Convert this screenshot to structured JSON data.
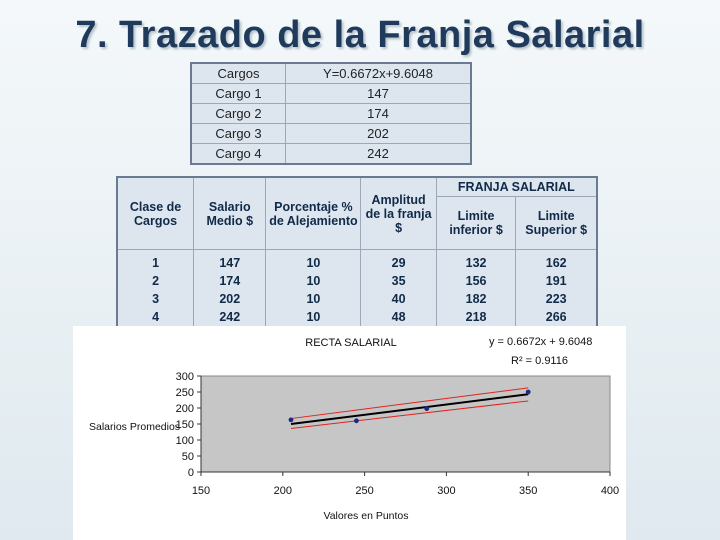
{
  "slide": {
    "title": "7. Trazado de la Franja Salarial"
  },
  "top_table": {
    "header": [
      "Cargos",
      "Y=0.6672x+9.6048"
    ],
    "rows": [
      [
        "Cargo 1",
        "147"
      ],
      [
        "Cargo 2",
        "174"
      ],
      [
        "Cargo 3",
        "202"
      ],
      [
        "Cargo 4",
        "242"
      ]
    ]
  },
  "main_table": {
    "headers": {
      "clase": "Clase de Cargos",
      "salario": "Salario Medio $",
      "porcentaje": "Porcentaje % de Alejamiento",
      "amplitud": "Amplitud de la franja $",
      "franja": "FRANJA SALARIAL",
      "limite_inferior": "Limite inferior $",
      "limite_superior": "Limite Superior $"
    },
    "rows": [
      [
        "1",
        "147",
        "10",
        "29",
        "132",
        "162"
      ],
      [
        "2",
        "174",
        "10",
        "35",
        "156",
        "191"
      ],
      [
        "3",
        "202",
        "10",
        "40",
        "182",
        "223"
      ],
      [
        "4",
        "242",
        "10",
        "48",
        "218",
        "266"
      ]
    ]
  },
  "chart_data": {
    "type": "scatter",
    "title": "RECTA SALARIAL",
    "xlabel": "Valores en Puntos",
    "ylabel": "Salarios Promedios",
    "xlim": [
      150,
      400
    ],
    "ylim": [
      0,
      300
    ],
    "x_ticks": [
      "150",
      "200",
      "250",
      "300",
      "350",
      "400"
    ],
    "y_ticks": [
      "0",
      "50",
      "100",
      "150",
      "200",
      "250",
      "300"
    ],
    "equation": "y = 0.6672x + 9.6048",
    "r_squared": "R² = 0.9116",
    "points": [
      {
        "x": 205,
        "y": 163
      },
      {
        "x": 245,
        "y": 160
      },
      {
        "x": 288,
        "y": 198
      },
      {
        "x": 350,
        "y": 250
      }
    ],
    "trendline": {
      "x": [
        205,
        350
      ],
      "y": [
        150,
        243
      ]
    },
    "upper_band": {
      "x": [
        205,
        350
      ],
      "y": [
        167,
        263
      ]
    },
    "lower_band": {
      "x": [
        205,
        350
      ],
      "y": [
        136,
        222
      ]
    },
    "colors": {
      "plot_area": "#c6c6c6",
      "points": "#1a2a8a",
      "trendline": "#000000",
      "bands": "#e0241c"
    },
    "grid": false
  }
}
